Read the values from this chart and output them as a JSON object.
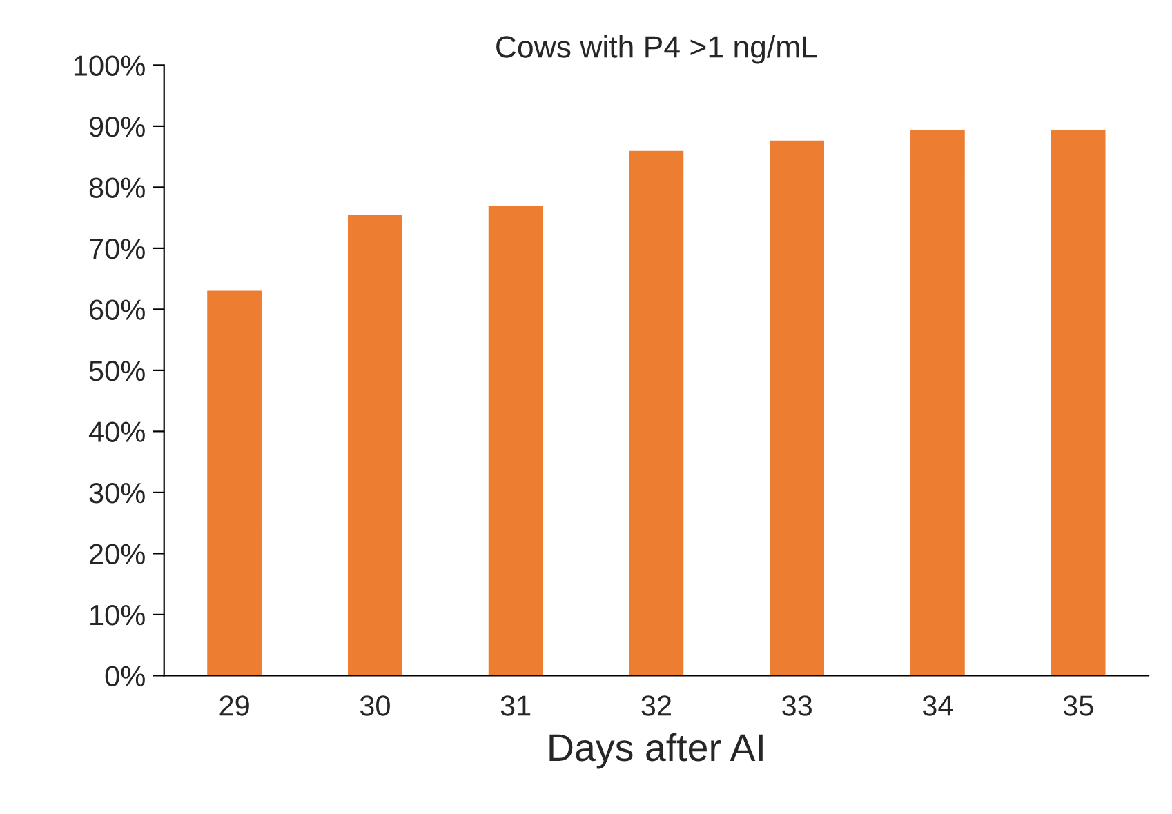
{
  "chart_data": {
    "type": "bar",
    "title": "Cows with P4 >1 ng/mL",
    "xlabel": "Days after AI",
    "categories": [
      "29",
      "30",
      "31",
      "32",
      "33",
      "34",
      "35"
    ],
    "values": [
      63.2,
      75.6,
      77.1,
      86.1,
      87.8,
      89.5,
      89.5
    ],
    "color": "#ed7d31",
    "ylim": [
      0,
      100
    ],
    "yticks": [
      {
        "value": 0,
        "label": "0%"
      },
      {
        "value": 10,
        "label": "10%"
      },
      {
        "value": 20,
        "label": "20%"
      },
      {
        "value": 30,
        "label": "30%"
      },
      {
        "value": 40,
        "label": "40%"
      },
      {
        "value": 50,
        "label": "50%"
      },
      {
        "value": 60,
        "label": "60%"
      },
      {
        "value": 70,
        "label": "70%"
      },
      {
        "value": 80,
        "label": "80%"
      },
      {
        "value": 90,
        "label": "90%"
      },
      {
        "value": 100,
        "label": "100%"
      }
    ],
    "grid": false
  }
}
